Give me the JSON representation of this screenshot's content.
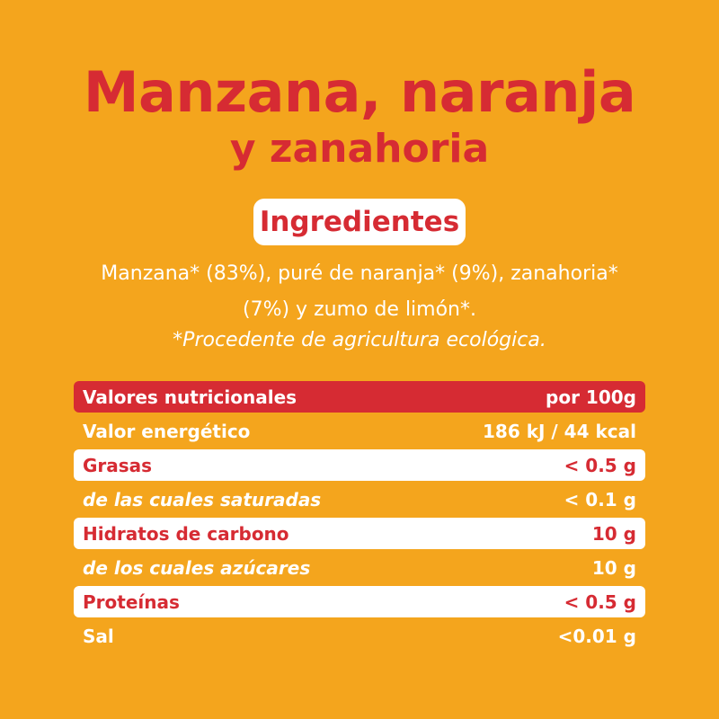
{
  "title": {
    "line1": "Manzana, naranja",
    "line2": "y zanahoria"
  },
  "ingredients": {
    "heading": "Ingredientes",
    "line1": "Manzana* (83%), puré de naranja* (9%), zanahoria*",
    "line2": "(7%) y zumo de limón*.",
    "note": "*Procedente de agricultura ecológica."
  },
  "nutrition": {
    "header": {
      "label": "Valores nutricionales",
      "value": "por 100g"
    },
    "rows": [
      {
        "label": "Valor energético",
        "value": "186 kJ / 44 kcal"
      },
      {
        "label": "Grasas",
        "value": "< 0.5 g"
      },
      {
        "label": "de las cuales saturadas",
        "value": "< 0.1 g"
      },
      {
        "label": "Hidratos de carbono",
        "value": "10 g"
      },
      {
        "label": "de los cuales azúcares",
        "value": "10 g"
      },
      {
        "label": "Proteínas",
        "value": "< 0.5 g"
      },
      {
        "label": "Sal",
        "value": "<0.01 g"
      }
    ]
  },
  "colors": {
    "background": "#f4a51d",
    "accent": "#d62b33",
    "white": "#ffffff"
  }
}
